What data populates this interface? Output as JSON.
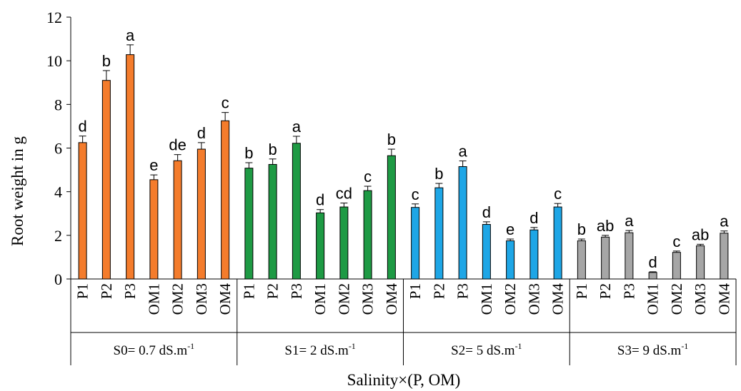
{
  "chart_data": {
    "type": "bar",
    "xlabel": "Salinity×(P, OM)",
    "ylabel": "Root weight in g",
    "ylim": [
      0,
      12
    ],
    "yticks": [
      0,
      2,
      4,
      6,
      8,
      10,
      12
    ],
    "grid": false,
    "legend": "none",
    "categories": [
      "P1",
      "P2",
      "P3",
      "OM1",
      "OM2",
      "OM3",
      "OM4"
    ],
    "groups": [
      {
        "label_main": "S0= 0.7 dS.m",
        "label_sup": "-1",
        "color": "#F47C2C",
        "values": [
          6.25,
          9.1,
          10.28,
          4.55,
          5.42,
          5.95,
          7.25
        ],
        "errors": [
          0.3,
          0.45,
          0.45,
          0.22,
          0.28,
          0.3,
          0.38
        ],
        "letters": [
          "d",
          "b",
          "a",
          "e",
          "de",
          "d",
          "c"
        ]
      },
      {
        "label_main": "S1= 2 dS.m",
        "label_sup": "-1",
        "color": "#1E9A44",
        "values": [
          5.08,
          5.25,
          6.22,
          3.03,
          3.3,
          4.05,
          5.65
        ],
        "errors": [
          0.25,
          0.25,
          0.32,
          0.15,
          0.18,
          0.2,
          0.3
        ],
        "letters": [
          "b",
          "b",
          "a",
          "d",
          "cd",
          "c",
          "b"
        ]
      },
      {
        "label_main": "S2= 5 dS.m",
        "label_sup": "-1",
        "color": "#1EA6E6",
        "values": [
          3.28,
          4.18,
          5.15,
          2.5,
          1.75,
          2.25,
          3.3
        ],
        "errors": [
          0.16,
          0.2,
          0.26,
          0.12,
          0.08,
          0.11,
          0.16
        ],
        "letters": [
          "c",
          "b",
          "a",
          "d",
          "e",
          "d",
          "c"
        ]
      },
      {
        "label_main": "S3= 9 dS.m",
        "label_sup": "-1",
        "color": "#A6A6A6",
        "values": [
          1.75,
          1.92,
          2.12,
          0.3,
          1.22,
          1.52,
          2.1
        ],
        "errors": [
          0.08,
          0.08,
          0.1,
          0.03,
          0.06,
          0.07,
          0.1
        ],
        "letters": [
          "b",
          "ab",
          "a",
          "d",
          "c",
          "ab",
          "a"
        ]
      }
    ]
  }
}
